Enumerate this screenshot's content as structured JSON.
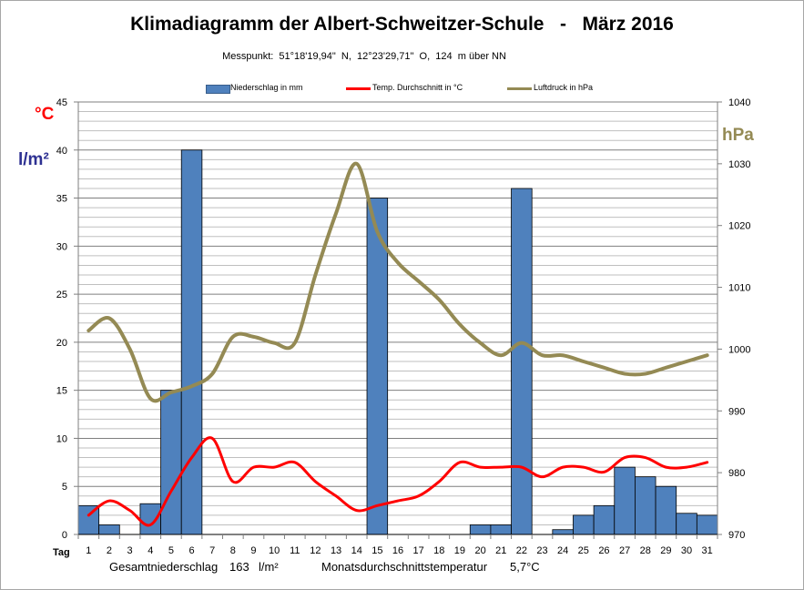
{
  "chart_data": {
    "type": "bar",
    "title": "Klimadiagramm der Albert-Schweitzer-Schule   -   März 2016",
    "subtitle": "Messpunkt:  51°18'19,94\"  N,  12°23'29,71\"  O,  124  m über NN",
    "xlabel": "Tag",
    "left_units": [
      "°C",
      "l/m²"
    ],
    "right_unit": "hPa",
    "categories": [
      "1",
      "2",
      "3",
      "4",
      "5",
      "6",
      "7",
      "8",
      "9",
      "10",
      "11",
      "12",
      "13",
      "14",
      "15",
      "16",
      "17",
      "18",
      "19",
      "20",
      "21",
      "22",
      "23",
      "24",
      "25",
      "26",
      "27",
      "28",
      "29",
      "30",
      "31"
    ],
    "ylim": [
      0,
      45
    ],
    "yticks": [
      0,
      5,
      10,
      15,
      20,
      25,
      30,
      35,
      40,
      45
    ],
    "y2lim": [
      970,
      1040
    ],
    "y2ticks": [
      970,
      980,
      990,
      1000,
      1010,
      1020,
      1030,
      1040
    ],
    "grid": true,
    "series": [
      {
        "name": "Niederschlag in mm",
        "kind": "bar",
        "axis": "left",
        "color": "#4f81bd",
        "values": [
          3,
          1,
          0,
          3.2,
          15,
          40,
          0,
          0,
          0,
          0,
          0,
          0,
          0,
          0,
          35,
          0,
          0,
          0,
          0,
          1,
          1,
          36,
          0,
          0.5,
          2,
          3,
          7,
          6,
          5,
          2.2,
          2
        ]
      },
      {
        "name": "Temp. Durchschnitt in °C",
        "kind": "line",
        "axis": "left",
        "color": "#ff0000",
        "values": [
          2,
          3.5,
          2.5,
          1,
          4.5,
          8,
          10,
          5.5,
          7,
          7,
          7.5,
          5.5,
          4,
          2.5,
          3,
          3.5,
          4,
          5.5,
          7.5,
          7,
          7,
          7,
          6,
          7,
          7,
          6.5,
          8,
          8,
          7,
          7,
          7.5
        ]
      },
      {
        "name": "Luftdruck in hPa",
        "kind": "line",
        "axis": "right",
        "color": "#948a54",
        "values": [
          1003,
          1005,
          1000,
          992,
          993,
          994,
          996,
          1002,
          1002,
          1001,
          1001,
          1012,
          1022,
          1030,
          1019,
          1014,
          1011,
          1008,
          1004,
          1001,
          999,
          1001,
          999,
          999,
          998,
          997,
          996,
          996,
          997,
          998,
          999
        ]
      }
    ]
  },
  "footer": {
    "total_label": "Gesamtniederschlag",
    "total_value": "163",
    "total_unit": "l/m²",
    "avg_label": "Monatsdurchschnittstemperatur",
    "avg_value": "5,7°C"
  }
}
